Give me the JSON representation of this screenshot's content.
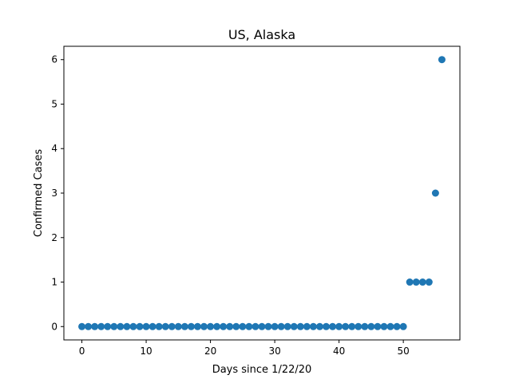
{
  "chart_data": {
    "type": "scatter",
    "title": "US, Alaska",
    "xlabel": "Days since 1/22/20",
    "ylabel": "Confirmed Cases",
    "xlim": [
      -2.8,
      58.8
    ],
    "ylim": [
      -0.3,
      6.3
    ],
    "xticks": [
      0,
      10,
      20,
      30,
      40,
      50
    ],
    "yticks": [
      0,
      1,
      2,
      3,
      4,
      5,
      6
    ],
    "grid": false,
    "legend": "none",
    "marker_color": "#1f77b4",
    "x": [
      0,
      1,
      2,
      3,
      4,
      5,
      6,
      7,
      8,
      9,
      10,
      11,
      12,
      13,
      14,
      15,
      16,
      17,
      18,
      19,
      20,
      21,
      22,
      23,
      24,
      25,
      26,
      27,
      28,
      29,
      30,
      31,
      32,
      33,
      34,
      35,
      36,
      37,
      38,
      39,
      40,
      41,
      42,
      43,
      44,
      45,
      46,
      47,
      48,
      49,
      50,
      51,
      52,
      53,
      54,
      55,
      56
    ],
    "y": [
      0,
      0,
      0,
      0,
      0,
      0,
      0,
      0,
      0,
      0,
      0,
      0,
      0,
      0,
      0,
      0,
      0,
      0,
      0,
      0,
      0,
      0,
      0,
      0,
      0,
      0,
      0,
      0,
      0,
      0,
      0,
      0,
      0,
      0,
      0,
      0,
      0,
      0,
      0,
      0,
      0,
      0,
      0,
      0,
      0,
      0,
      0,
      0,
      0,
      0,
      0,
      1,
      1,
      1,
      1,
      3,
      6
    ]
  }
}
